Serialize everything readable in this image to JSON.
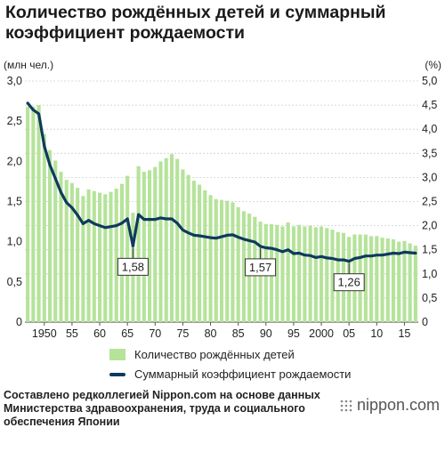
{
  "title": "Количество рождённых детей и суммарный коэффициент рождаемости",
  "unit_left": "(млн чел.)",
  "unit_right": "(%)",
  "legend": {
    "bar": "Количество рождённых детей",
    "line": "Суммарный коэффициент рождаемости"
  },
  "source": "Составлено редколлегией Nippon.com на основе данных Министерства здравоохранения, труда и социального обеспечения Японии",
  "logo": "nippon.com",
  "chart_data": {
    "type": "bar",
    "x": [
      1947,
      1948,
      1949,
      1950,
      1951,
      1952,
      1953,
      1954,
      1955,
      1956,
      1957,
      1958,
      1959,
      1960,
      1961,
      1962,
      1963,
      1964,
      1965,
      1966,
      1967,
      1968,
      1969,
      1970,
      1971,
      1972,
      1973,
      1974,
      1975,
      1976,
      1977,
      1978,
      1979,
      1980,
      1981,
      1982,
      1983,
      1984,
      1985,
      1986,
      1987,
      1988,
      1989,
      1990,
      1991,
      1992,
      1993,
      1994,
      1995,
      1996,
      1997,
      1998,
      1999,
      2000,
      2001,
      2002,
      2003,
      2004,
      2005,
      2006,
      2007,
      2008,
      2009,
      2010,
      2011,
      2012,
      2013,
      2014,
      2015,
      2016,
      2017
    ],
    "series": [
      {
        "name": "Количество рождённых детей",
        "type": "bar",
        "axis": "left",
        "color": "#b5e39a",
        "values": [
          2.68,
          2.68,
          2.7,
          2.34,
          2.14,
          2.01,
          1.87,
          1.77,
          1.73,
          1.67,
          1.57,
          1.65,
          1.63,
          1.61,
          1.59,
          1.62,
          1.66,
          1.72,
          1.82,
          1.36,
          1.94,
          1.87,
          1.89,
          1.93,
          2.0,
          2.04,
          2.09,
          2.03,
          1.9,
          1.83,
          1.76,
          1.71,
          1.64,
          1.58,
          1.53,
          1.52,
          1.51,
          1.49,
          1.43,
          1.38,
          1.35,
          1.31,
          1.25,
          1.22,
          1.22,
          1.21,
          1.19,
          1.24,
          1.19,
          1.21,
          1.19,
          1.2,
          1.18,
          1.19,
          1.17,
          1.15,
          1.12,
          1.11,
          1.06,
          1.09,
          1.09,
          1.09,
          1.07,
          1.07,
          1.05,
          1.04,
          1.03,
          1.0,
          1.01,
          0.98,
          0.95
        ]
      },
      {
        "name": "Суммарный коэффициент рождаемости",
        "type": "line",
        "axis": "right",
        "color": "#0e3a5e",
        "values": [
          4.54,
          4.4,
          4.32,
          3.65,
          3.26,
          2.98,
          2.69,
          2.48,
          2.37,
          2.22,
          2.04,
          2.11,
          2.04,
          2.0,
          1.96,
          1.98,
          2.0,
          2.05,
          2.14,
          1.58,
          2.23,
          2.13,
          2.13,
          2.13,
          2.16,
          2.14,
          2.14,
          2.05,
          1.91,
          1.85,
          1.8,
          1.79,
          1.77,
          1.75,
          1.74,
          1.77,
          1.8,
          1.81,
          1.76,
          1.72,
          1.69,
          1.66,
          1.57,
          1.54,
          1.53,
          1.5,
          1.46,
          1.5,
          1.42,
          1.43,
          1.39,
          1.38,
          1.34,
          1.36,
          1.33,
          1.32,
          1.29,
          1.29,
          1.26,
          1.32,
          1.34,
          1.37,
          1.37,
          1.39,
          1.39,
          1.41,
          1.43,
          1.42,
          1.45,
          1.44,
          1.43
        ]
      }
    ],
    "y_left": {
      "min": 0,
      "max": 3.0,
      "ticks": [
        "0",
        "0,5",
        "1,0",
        "1,5",
        "2,0",
        "2,5",
        "3,0"
      ]
    },
    "y_right": {
      "min": 0,
      "max": 5.0,
      "ticks": [
        "0",
        "0,5",
        "1,0",
        "1,5",
        "2,0",
        "2,5",
        "3,0",
        "3,5",
        "4,0",
        "4,5",
        "5,0"
      ]
    },
    "x_ticks": [
      {
        "x": 1950,
        "label": "1950"
      },
      {
        "x": 1955,
        "label": "55"
      },
      {
        "x": 1960,
        "label": "60"
      },
      {
        "x": 1965,
        "label": "65"
      },
      {
        "x": 1970,
        "label": "70"
      },
      {
        "x": 1975,
        "label": "75"
      },
      {
        "x": 1980,
        "label": "80"
      },
      {
        "x": 1985,
        "label": "85"
      },
      {
        "x": 1990,
        "label": "90"
      },
      {
        "x": 1995,
        "label": "95"
      },
      {
        "x": 2000,
        "label": "2000"
      },
      {
        "x": 2005,
        "label": "05"
      },
      {
        "x": 2010,
        "label": "10"
      },
      {
        "x": 2015,
        "label": "15"
      }
    ],
    "annotations": [
      {
        "x": 1966,
        "label": "1,58"
      },
      {
        "x": 1989,
        "label": "1,57"
      },
      {
        "x": 2005,
        "label": "1,26"
      }
    ],
    "grid": true,
    "legend_position": "bottom"
  }
}
